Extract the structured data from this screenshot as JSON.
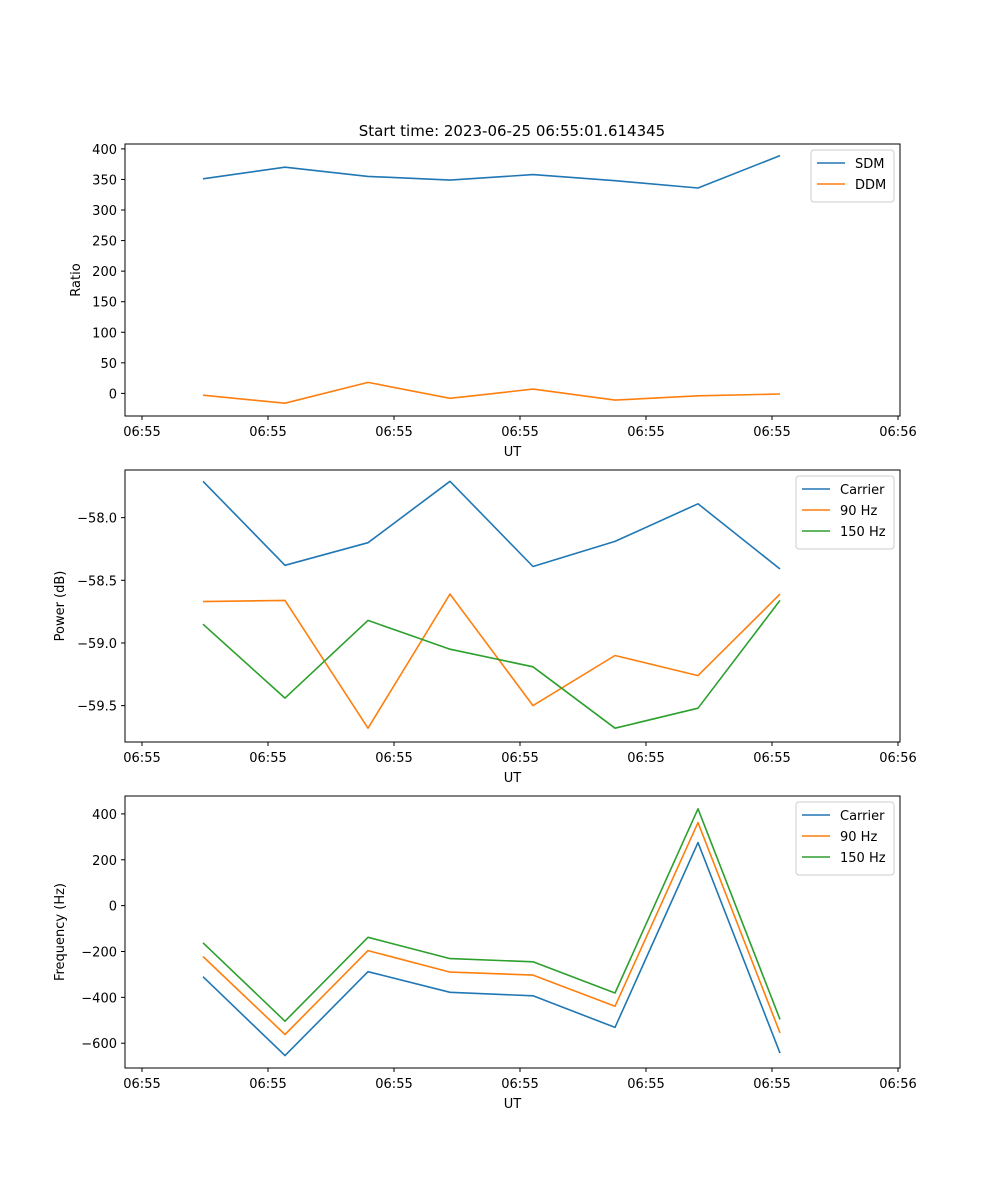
{
  "figure_title": "Start time: 2023-06-25 06:55:01.614345",
  "colors": {
    "blue": "#1f77b4",
    "orange": "#ff7f0e",
    "green": "#2ca02c"
  },
  "chart_data": [
    {
      "type": "line",
      "title": "Start time: 2023-06-25 06:55:01.614345",
      "xlabel": "UT",
      "ylabel": "Ratio",
      "x_tick_labels": [
        "06:55",
        "06:55",
        "06:55",
        "06:55",
        "06:55",
        "06:55",
        "06:56"
      ],
      "x_index": [
        0,
        1,
        2,
        3,
        4,
        5,
        6,
        7
      ],
      "yticks": [
        0,
        50,
        100,
        150,
        200,
        250,
        300,
        350,
        400
      ],
      "ylim": [
        -37,
        408
      ],
      "legend": "upper right",
      "series": [
        {
          "name": "SDM",
          "color": "#1f77b4",
          "values": [
            351,
            370,
            355,
            349,
            358,
            348,
            336,
            389
          ]
        },
        {
          "name": "DDM",
          "color": "#ff7f0e",
          "values": [
            -3,
            -16,
            18,
            -8,
            7,
            -11,
            -4,
            -1
          ]
        }
      ]
    },
    {
      "type": "line",
      "xlabel": "UT",
      "ylabel": "Power (dB)",
      "x_tick_labels": [
        "06:55",
        "06:55",
        "06:55",
        "06:55",
        "06:55",
        "06:55",
        "06:56"
      ],
      "x_index": [
        0,
        1,
        2,
        3,
        4,
        5,
        6,
        7
      ],
      "yticks": [
        -58.0,
        -58.5,
        -59.0,
        -59.5
      ],
      "ytick_labels": [
        "−58.0",
        "−58.5",
        "−59.0",
        "−59.5"
      ],
      "ylim": [
        -59.79,
        -57.62
      ],
      "legend": "upper right",
      "series": [
        {
          "name": "Carrier",
          "color": "#1f77b4",
          "values": [
            -57.71,
            -58.38,
            -58.2,
            -57.71,
            -58.39,
            -58.19,
            -57.89,
            -58.41
          ]
        },
        {
          "name": "90 Hz",
          "color": "#ff7f0e",
          "values": [
            -58.67,
            -58.66,
            -59.68,
            -58.61,
            -59.5,
            -59.1,
            -59.26,
            -58.61
          ]
        },
        {
          "name": "150 Hz",
          "color": "#2ca02c",
          "values": [
            -58.85,
            -59.44,
            -58.82,
            -59.05,
            -59.19,
            -59.68,
            -59.52,
            -58.66
          ]
        }
      ]
    },
    {
      "type": "line",
      "xlabel": "UT",
      "ylabel": "Frequency (Hz)",
      "x_tick_labels": [
        "06:55",
        "06:55",
        "06:55",
        "06:55",
        "06:55",
        "06:55",
        "06:56"
      ],
      "x_index": [
        0,
        1,
        2,
        3,
        4,
        5,
        6,
        7
      ],
      "yticks": [
        400,
        200,
        0,
        -200,
        -400,
        -600
      ],
      "ytick_labels": [
        "400",
        "200",
        "0",
        "−200",
        "−400",
        "−600"
      ],
      "ylim": [
        -708,
        478
      ],
      "legend": "upper right",
      "series": [
        {
          "name": "Carrier",
          "color": "#1f77b4",
          "values": [
            -310,
            -654,
            -288,
            -378,
            -393,
            -531,
            275,
            -643
          ]
        },
        {
          "name": "90 Hz",
          "color": "#ff7f0e",
          "values": [
            -222,
            -562,
            -196,
            -290,
            -303,
            -439,
            362,
            -555
          ]
        },
        {
          "name": "150 Hz",
          "color": "#2ca02c",
          "values": [
            -162,
            -504,
            -138,
            -231,
            -245,
            -381,
            422,
            -496
          ]
        }
      ]
    }
  ]
}
